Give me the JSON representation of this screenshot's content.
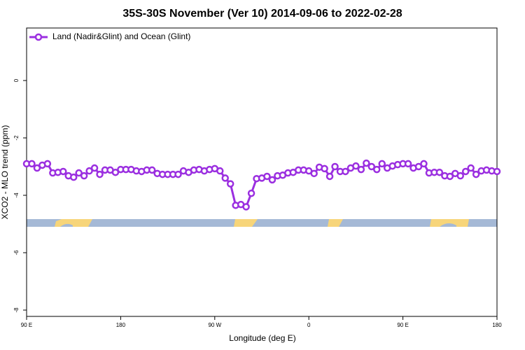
{
  "chart_data": {
    "type": "line",
    "title": "35S-30S November (Ver 10)   2014-09-06 to 2022-02-28",
    "x_label": "Longitude (deg E)",
    "y_label": "XCO2 - MLO trend (ppm)",
    "xlim": [
      90,
      540
    ],
    "ylim": [
      -8.22,
      1.83
    ],
    "xticks": [
      {
        "value": 90,
        "label": "90 E"
      },
      {
        "value": 180,
        "label": "180"
      },
      {
        "value": 270,
        "label": "90 W"
      },
      {
        "value": 360,
        "label": "0"
      },
      {
        "value": 450,
        "label": "90 E"
      },
      {
        "value": 540,
        "label": "180"
      }
    ],
    "yticks": [
      0,
      -2,
      -4,
      -6,
      -8
    ],
    "legend_position": "upper left",
    "x": [
      90,
      95,
      100,
      105,
      110,
      115,
      120,
      125,
      130,
      135,
      140,
      145,
      150,
      155,
      160,
      165,
      170,
      175,
      180,
      185,
      190,
      195,
      200,
      205,
      210,
      215,
      220,
      225,
      230,
      235,
      240,
      245,
      250,
      255,
      260,
      265,
      270,
      275,
      280,
      285,
      290,
      295,
      300,
      305,
      310,
      315,
      320,
      325,
      330,
      335,
      340,
      345,
      350,
      355,
      360,
      365,
      370,
      375,
      380,
      385,
      390,
      395,
      400,
      405,
      410,
      415,
      420,
      425,
      430,
      435,
      440,
      445,
      450,
      455,
      460,
      465,
      470,
      475,
      480,
      485,
      490,
      495,
      500,
      505,
      510,
      515,
      520,
      525,
      530,
      535,
      540
    ],
    "series": [
      {
        "name": "Land (Nadir&Glint) and Ocean (Glint)",
        "color": "#9b2fe0",
        "values": [
          -2.9,
          -2.9,
          -3.05,
          -2.95,
          -2.9,
          -3.22,
          -3.2,
          -3.17,
          -3.32,
          -3.37,
          -3.22,
          -3.32,
          -3.15,
          -3.05,
          -3.27,
          -3.12,
          -3.12,
          -3.2,
          -3.1,
          -3.1,
          -3.1,
          -3.15,
          -3.17,
          -3.12,
          -3.12,
          -3.24,
          -3.27,
          -3.27,
          -3.27,
          -3.27,
          -3.15,
          -3.2,
          -3.12,
          -3.1,
          -3.15,
          -3.1,
          -3.07,
          -3.15,
          -3.4,
          -3.6,
          -4.35,
          -4.32,
          -4.4,
          -3.93,
          -3.42,
          -3.4,
          -3.34,
          -3.46,
          -3.32,
          -3.3,
          -3.22,
          -3.2,
          -3.12,
          -3.12,
          -3.15,
          -3.24,
          -3.02,
          -3.07,
          -3.34,
          -3.0,
          -3.17,
          -3.17,
          -3.05,
          -2.98,
          -3.1,
          -2.88,
          -3.0,
          -3.1,
          -2.9,
          -3.05,
          -2.98,
          -2.93,
          -2.9,
          -2.9,
          -3.05,
          -3.0,
          -2.9,
          -3.22,
          -3.2,
          -3.2,
          -3.32,
          -3.34,
          -3.24,
          -3.32,
          -3.17,
          -3.05,
          -3.27,
          -3.15,
          -3.12,
          -3.15,
          -3.17
        ]
      }
    ]
  }
}
